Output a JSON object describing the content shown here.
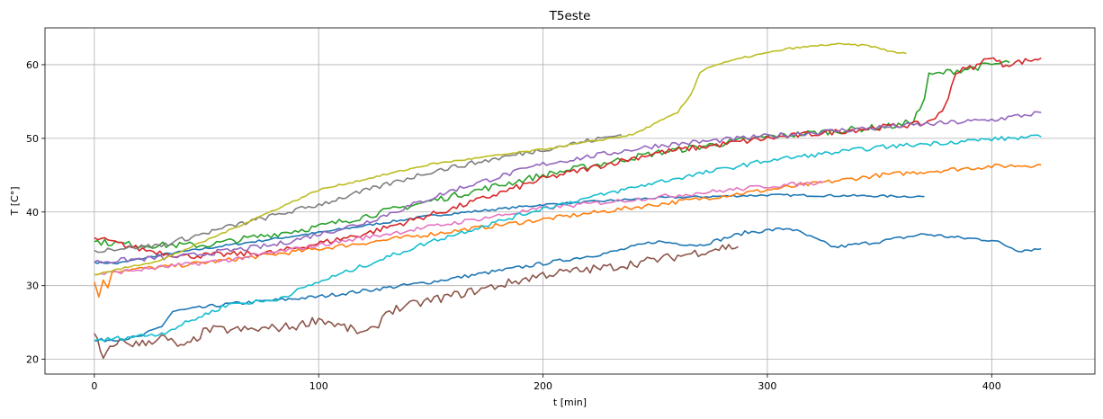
{
  "chart_data": {
    "type": "line",
    "title": "T5este",
    "xlabel": "t [min]",
    "ylabel": "T [C°]",
    "xlim": [
      -22,
      446
    ],
    "ylim": [
      18,
      65
    ],
    "xticks": [
      0,
      100,
      200,
      300,
      400
    ],
    "yticks": [
      20,
      30,
      40,
      50,
      60
    ],
    "grid": true,
    "series": [
      {
        "color": "#1f77b4",
        "noise": 0.15,
        "points": [
          [
            0,
            33.2
          ],
          [
            10,
            33.0
          ],
          [
            30,
            34.2
          ],
          [
            60,
            35.5
          ],
          [
            100,
            37.2
          ],
          [
            150,
            39.5
          ],
          [
            200,
            41.0
          ],
          [
            250,
            41.9
          ],
          [
            300,
            42.3
          ],
          [
            340,
            42.2
          ],
          [
            370,
            42.1
          ]
        ]
      },
      {
        "color": "#1f77b4",
        "noise": 0.25,
        "points": [
          [
            0,
            22.5
          ],
          [
            20,
            23.0
          ],
          [
            30,
            24.5
          ],
          [
            35,
            26.5
          ],
          [
            60,
            27.5
          ],
          [
            100,
            28.5
          ],
          [
            150,
            30.5
          ],
          [
            200,
            33.0
          ],
          [
            230,
            34.5
          ],
          [
            250,
            36.0
          ],
          [
            270,
            35.5
          ],
          [
            290,
            37.2
          ],
          [
            310,
            37.8
          ],
          [
            330,
            35.2
          ],
          [
            350,
            36.0
          ],
          [
            370,
            37.0
          ],
          [
            385,
            36.5
          ],
          [
            400,
            36.2
          ],
          [
            412,
            34.8
          ],
          [
            422,
            35.0
          ]
        ]
      },
      {
        "color": "#ff7f0e",
        "noise": 0.3,
        "points": [
          [
            0,
            30.5
          ],
          [
            2,
            28.5
          ],
          [
            4,
            31.0
          ],
          [
            6,
            29.5
          ],
          [
            8,
            32.0
          ],
          [
            30,
            32.5
          ],
          [
            60,
            33.5
          ],
          [
            100,
            35.0
          ],
          [
            150,
            37.0
          ],
          [
            200,
            39.0
          ],
          [
            250,
            41.0
          ],
          [
            300,
            43.0
          ],
          [
            350,
            45.0
          ],
          [
            400,
            46.2
          ],
          [
            422,
            46.4
          ]
        ]
      },
      {
        "color": "#2ca02c",
        "noise": 0.45,
        "points": [
          [
            0,
            36.0
          ],
          [
            20,
            35.5
          ],
          [
            50,
            35.5
          ],
          [
            100,
            38.0
          ],
          [
            150,
            41.5
          ],
          [
            200,
            45.0
          ],
          [
            250,
            48.0
          ],
          [
            300,
            50.2
          ],
          [
            330,
            51.0
          ],
          [
            360,
            51.8
          ],
          [
            365,
            52.5
          ],
          [
            368,
            54.0
          ],
          [
            370,
            55.5
          ],
          [
            372,
            58.5
          ],
          [
            380,
            59.0
          ],
          [
            400,
            60.0
          ],
          [
            408,
            60.3
          ]
        ]
      },
      {
        "color": "#d62728",
        "noise": 0.4,
        "points": [
          [
            0,
            36.5
          ],
          [
            20,
            35.0
          ],
          [
            40,
            34.0
          ],
          [
            80,
            34.5
          ],
          [
            120,
            37.0
          ],
          [
            160,
            40.5
          ],
          [
            200,
            44.5
          ],
          [
            250,
            48.0
          ],
          [
            300,
            50.0
          ],
          [
            350,
            51.5
          ],
          [
            370,
            52.0
          ],
          [
            378,
            53.5
          ],
          [
            382,
            57.0
          ],
          [
            384,
            59.0
          ],
          [
            395,
            60.0
          ],
          [
            398,
            61.2
          ],
          [
            405,
            60.0
          ],
          [
            415,
            60.5
          ],
          [
            422,
            60.9
          ]
        ]
      },
      {
        "color": "#9467bd",
        "noise": 0.35,
        "points": [
          [
            0,
            33.2
          ],
          [
            40,
            34.0
          ],
          [
            80,
            35.5
          ],
          [
            120,
            38.5
          ],
          [
            160,
            43.0
          ],
          [
            200,
            46.5
          ],
          [
            250,
            49.0
          ],
          [
            300,
            50.3
          ],
          [
            350,
            51.5
          ],
          [
            400,
            52.5
          ],
          [
            422,
            53.5
          ]
        ]
      },
      {
        "color": "#8c564b",
        "noise": 0.6,
        "points": [
          [
            0,
            23.5
          ],
          [
            4,
            20.0
          ],
          [
            10,
            22.5
          ],
          [
            20,
            22.0
          ],
          [
            30,
            23.0
          ],
          [
            40,
            21.5
          ],
          [
            50,
            24.0
          ],
          [
            70,
            24.0
          ],
          [
            90,
            24.5
          ],
          [
            100,
            25.5
          ],
          [
            110,
            24.5
          ],
          [
            120,
            23.5
          ],
          [
            125,
            24.0
          ],
          [
            130,
            26.5
          ],
          [
            150,
            28.0
          ],
          [
            180,
            30.0
          ],
          [
            200,
            31.5
          ],
          [
            230,
            32.5
          ],
          [
            260,
            34.0
          ],
          [
            280,
            35.2
          ],
          [
            287,
            35.3
          ]
        ]
      },
      {
        "color": "#e377c2",
        "noise": 0.3,
        "points": [
          [
            0,
            31.5
          ],
          [
            30,
            32.5
          ],
          [
            60,
            33.5
          ],
          [
            100,
            35.5
          ],
          [
            150,
            38.0
          ],
          [
            200,
            40.5
          ],
          [
            250,
            42.0
          ],
          [
            300,
            43.5
          ],
          [
            325,
            44.0
          ]
        ]
      },
      {
        "color": "#7f7f7f",
        "noise": 0.35,
        "points": [
          [
            0,
            34.8
          ],
          [
            30,
            35.5
          ],
          [
            60,
            38.0
          ],
          [
            100,
            41.0
          ],
          [
            150,
            45.5
          ],
          [
            200,
            48.5
          ],
          [
            235,
            50.5
          ]
        ]
      },
      {
        "color": "#bcbd22",
        "noise": 0.12,
        "points": [
          [
            0,
            31.5
          ],
          [
            30,
            33.5
          ],
          [
            60,
            37.5
          ],
          [
            100,
            43.0
          ],
          [
            150,
            46.5
          ],
          [
            200,
            48.5
          ],
          [
            240,
            50.5
          ],
          [
            260,
            53.5
          ],
          [
            266,
            56.0
          ],
          [
            270,
            59.0
          ],
          [
            275,
            59.8
          ],
          [
            290,
            61.0
          ],
          [
            310,
            62.2
          ],
          [
            330,
            62.8
          ],
          [
            345,
            62.6
          ],
          [
            355,
            61.8
          ],
          [
            362,
            61.5
          ]
        ]
      },
      {
        "color": "#17becf",
        "noise": 0.3,
        "points": [
          [
            0,
            22.5
          ],
          [
            30,
            23.5
          ],
          [
            60,
            27.5
          ],
          [
            80,
            28.0
          ],
          [
            100,
            30.5
          ],
          [
            150,
            36.0
          ],
          [
            200,
            40.5
          ],
          [
            250,
            44.0
          ],
          [
            300,
            47.0
          ],
          [
            350,
            48.8
          ],
          [
            400,
            49.9
          ],
          [
            422,
            50.2
          ]
        ]
      }
    ]
  }
}
